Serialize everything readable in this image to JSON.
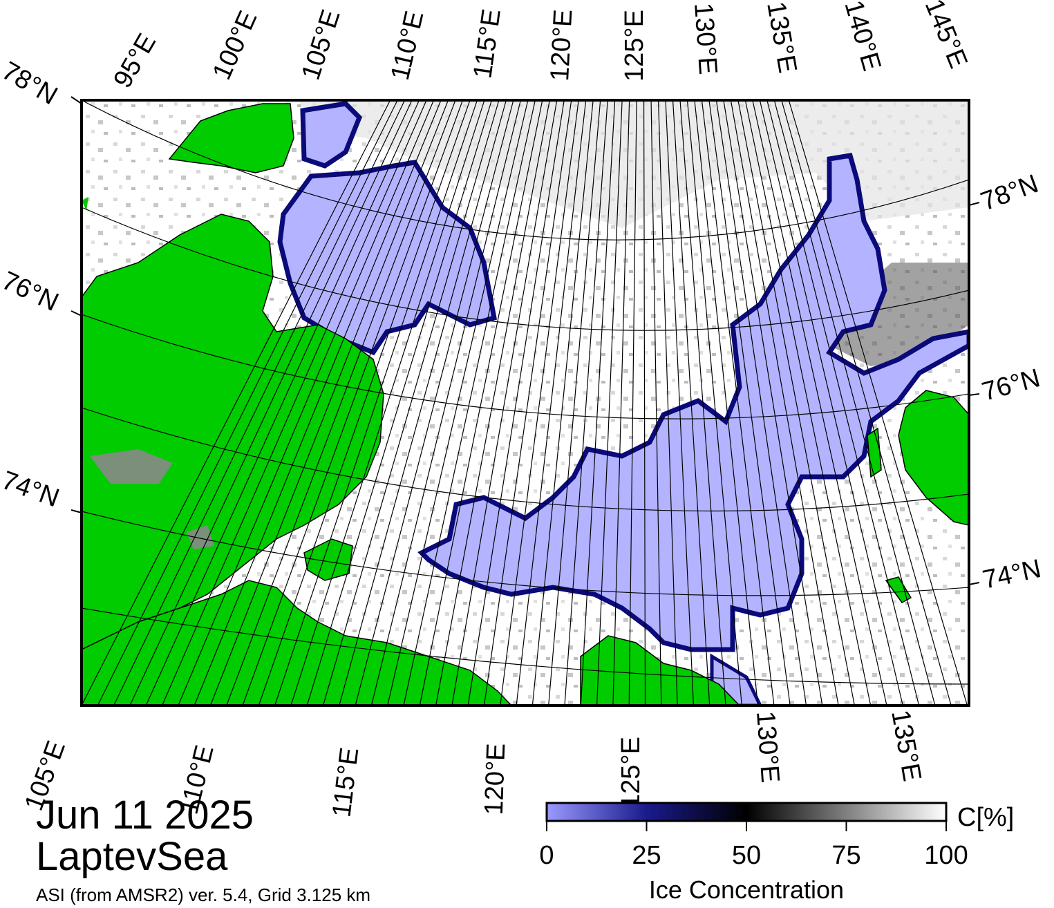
{
  "title": {
    "date": "Jun 11 2025",
    "region": "LaptevSea"
  },
  "subtitle": "ASI (from AMSR2) ver. 5.4,  Grid 3.125 km",
  "top_lon_labels": [
    "95°E",
    "100°E",
    "105°E",
    "110°E",
    "115°E",
    "120°E",
    "125°E",
    "130°E",
    "135°E",
    "140°E",
    "145°E"
  ],
  "bottom_lon_labels": [
    "105°E",
    "110°E",
    "115°E",
    "120°E",
    "125°E",
    "130°E",
    "135°E"
  ],
  "left_lat_labels": [
    "78°N",
    "76°N",
    "74°N"
  ],
  "right_lat_labels": [
    "78°N",
    "76°N",
    "74°N"
  ],
  "colorbar": {
    "unit": "C[%]",
    "label": "Ice Concentration",
    "ticks": [
      "0",
      "25",
      "50",
      "75",
      "100"
    ],
    "stops": [
      "#9a9aff",
      "#1a1a8c",
      "#000000",
      "#808080",
      "#ffffff"
    ]
  },
  "colors": {
    "land": "#00cc00",
    "low_concentration": "#b3b3ff",
    "open_water_edge": "#000066",
    "lowland": "#888888"
  }
}
